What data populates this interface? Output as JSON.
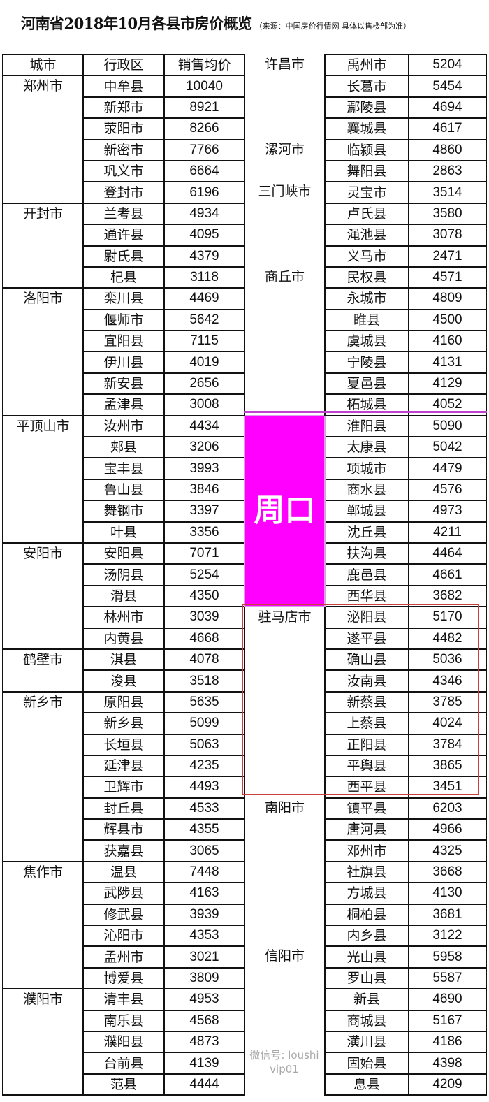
{
  "title": "河南省2018年10月各县市房价概览",
  "subtitle": "（来源：中国房价行情网 具体以售楼部为准）",
  "headers": {
    "city": "城市",
    "district": "行政区",
    "price": "销售均价"
  },
  "highlight_colors": {
    "zhoukou_fill": "#ff00ff",
    "zhumadian_box": "#c8403c"
  },
  "watermark": "微信号: loushivip01",
  "left_groups": [
    {
      "city": "郑州市",
      "districts": [
        [
          "中牟县",
          "10040"
        ],
        [
          "新郑市",
          "8921"
        ],
        [
          "荥阳市",
          "8266"
        ],
        [
          "新密市",
          "7766"
        ],
        [
          "巩义市",
          "6664"
        ],
        [
          "登封市",
          "6196"
        ]
      ]
    },
    {
      "city": "开封市",
      "districts": [
        [
          "兰考县",
          "4934"
        ],
        [
          "通许县",
          "4095"
        ],
        [
          "尉氏县",
          "4379"
        ],
        [
          "杞县",
          "3118"
        ]
      ]
    },
    {
      "city": "洛阳市",
      "districts": [
        [
          "栾川县",
          "4469"
        ],
        [
          "偃师市",
          "5642"
        ],
        [
          "宜阳县",
          "7115"
        ],
        [
          "伊川县",
          "4019"
        ],
        [
          "新安县",
          "2656"
        ],
        [
          "孟津县",
          "3008"
        ]
      ]
    },
    {
      "city": "平顶山市",
      "districts": [
        [
          "汝州市",
          "4434"
        ],
        [
          "郏县",
          "3206"
        ],
        [
          "宝丰县",
          "3993"
        ],
        [
          "鲁山县",
          "3846"
        ],
        [
          "舞钢市",
          "3397"
        ],
        [
          "叶县",
          "3356"
        ]
      ]
    },
    {
      "city": "安阳市",
      "districts": [
        [
          "安阳县",
          "7071"
        ],
        [
          "汤阴县",
          "5254"
        ],
        [
          "滑县",
          "4350"
        ],
        [
          "林州市",
          "3039"
        ],
        [
          "内黄县",
          "4668"
        ]
      ]
    },
    {
      "city": "鹤壁市",
      "districts": [
        [
          "淇县",
          "4078"
        ],
        [
          "浚县",
          "3518"
        ]
      ]
    },
    {
      "city": "新乡市",
      "districts": [
        [
          "原阳县",
          "5635"
        ],
        [
          "新乡县",
          "5099"
        ],
        [
          "长垣县",
          "5063"
        ],
        [
          "延津县",
          "4235"
        ],
        [
          "卫辉市",
          "4493"
        ],
        [
          "封丘县",
          "4533"
        ],
        [
          "辉县市",
          "4355"
        ],
        [
          "获嘉县",
          "3065"
        ]
      ]
    },
    {
      "city": "焦作市",
      "districts": [
        [
          "温县",
          "7448"
        ],
        [
          "武陟县",
          "4163"
        ],
        [
          "修武县",
          "3939"
        ],
        [
          "沁阳市",
          "4353"
        ],
        [
          "孟州市",
          "3021"
        ],
        [
          "博爱县",
          "3809"
        ]
      ]
    },
    {
      "city": "濮阳市",
      "districts": [
        [
          "清丰县",
          "4953"
        ],
        [
          "南乐县",
          "4568"
        ],
        [
          "濮阳县",
          "4873"
        ],
        [
          "台前县",
          "4139"
        ],
        [
          "范县",
          "4444"
        ]
      ]
    }
  ],
  "right_groups": [
    {
      "city": "许昌市",
      "districts": [
        [
          "禹州市",
          "5204"
        ],
        [
          "长葛市",
          "5454"
        ],
        [
          "鄢陵县",
          "4694"
        ],
        [
          "襄城县",
          "4617"
        ]
      ]
    },
    {
      "city": "漯河市",
      "districts": [
        [
          "临颍县",
          "4860"
        ],
        [
          "舞阳县",
          "2863"
        ]
      ]
    },
    {
      "city": "三门峡市",
      "districts": [
        [
          "灵宝市",
          "3514"
        ],
        [
          "卢氏县",
          "3580"
        ],
        [
          "渑池县",
          "3078"
        ],
        [
          "义马市",
          "2471"
        ]
      ]
    },
    {
      "city": "商丘市",
      "districts": [
        [
          "民权县",
          "4571"
        ],
        [
          "永城市",
          "4809"
        ],
        [
          "睢县",
          "4500"
        ],
        [
          "虞城县",
          "4160"
        ],
        [
          "宁陵县",
          "4131"
        ],
        [
          "夏邑县",
          "4129"
        ],
        [
          "柘城县",
          "4052"
        ]
      ]
    },
    {
      "city": "周口",
      "highlight": true,
      "districts": [
        [
          "淮阳县",
          "5090"
        ],
        [
          "太康县",
          "5042"
        ],
        [
          "项城市",
          "4479"
        ],
        [
          "商水县",
          "4576"
        ],
        [
          "郸城县",
          "4973"
        ],
        [
          "沈丘县",
          "4211"
        ],
        [
          "扶沟县",
          "4464"
        ],
        [
          "鹿邑县",
          "4661"
        ],
        [
          "西华县",
          "3682"
        ]
      ]
    },
    {
      "city": "驻马店市",
      "districts": [
        [
          "泌阳县",
          "5170"
        ],
        [
          "遂平县",
          "4482"
        ],
        [
          "确山县",
          "5036"
        ],
        [
          "汝南县",
          "4346"
        ],
        [
          "新蔡县",
          "3785"
        ],
        [
          "上蔡县",
          "4024"
        ],
        [
          "正阳县",
          "3784"
        ],
        [
          "平舆县",
          "3865"
        ],
        [
          "西平县",
          "3451"
        ]
      ]
    },
    {
      "city": "南阳市",
      "districts": [
        [
          "镇平县",
          "6203"
        ],
        [
          "唐河县",
          "4966"
        ],
        [
          "邓州市",
          "4325"
        ],
        [
          "社旗县",
          "3668"
        ],
        [
          "方城县",
          "4130"
        ],
        [
          "桐柏县",
          "3681"
        ],
        [
          "内乡县",
          "3122"
        ]
      ]
    },
    {
      "city": "信阳市",
      "districts": [
        [
          "光山县",
          "5958"
        ],
        [
          "罗山县",
          "5587"
        ],
        [
          "新县",
          "4690"
        ],
        [
          "商城县",
          "5167"
        ],
        [
          "潢川县",
          "4186"
        ],
        [
          "固始县",
          "4398"
        ],
        [
          "息县",
          "4209"
        ]
      ]
    }
  ]
}
